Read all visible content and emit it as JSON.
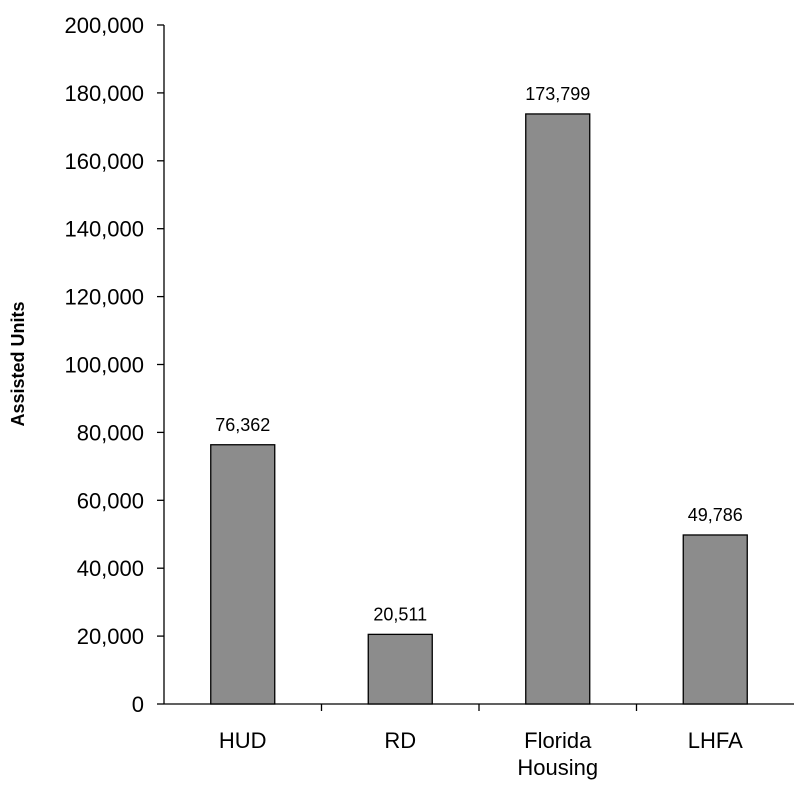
{
  "chart_data": {
    "type": "bar",
    "categories": [
      "HUD",
      "RD",
      "Florida Housing",
      "LHFA"
    ],
    "category_lines": [
      [
        "HUD"
      ],
      [
        "RD"
      ],
      [
        "Florida",
        "Housing"
      ],
      [
        "LHFA"
      ]
    ],
    "values": [
      76362,
      20511,
      173799,
      49786
    ],
    "value_labels": [
      "76,362",
      "20,511",
      "173,799",
      "49,786"
    ],
    "title": "",
    "xlabel": "",
    "ylabel": "Assisted Units",
    "ylim": [
      0,
      200000
    ],
    "yticks": [
      0,
      20000,
      40000,
      60000,
      80000,
      100000,
      120000,
      140000,
      160000,
      180000,
      200000
    ],
    "ytick_labels": [
      "0",
      "20,000",
      "40,000",
      "60,000",
      "80,000",
      "100,000",
      "120,000",
      "140,000",
      "160,000",
      "180,000",
      "200,000"
    ],
    "bar_color": "#8c8c8c",
    "grid": false,
    "legend": "none"
  }
}
